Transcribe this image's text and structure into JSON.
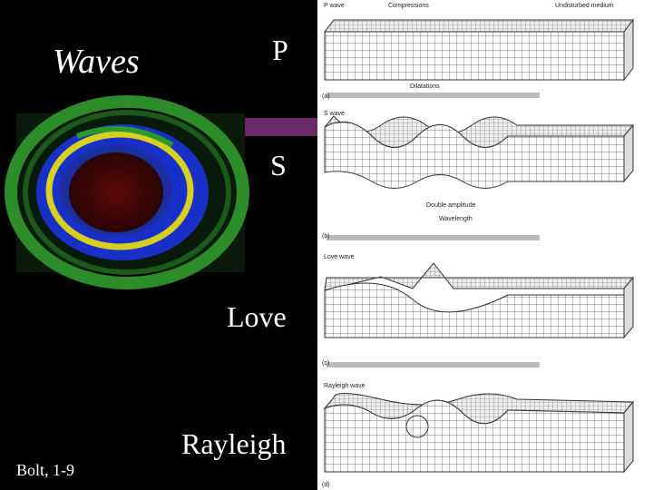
{
  "slide": {
    "title": "Waves",
    "labels": [
      "P",
      "S",
      "Love",
      "Rayleigh"
    ],
    "credit": "Bolt, 1-9"
  },
  "figure": {
    "p_wave": {
      "label": "P wave",
      "compressions": "Compressions",
      "undisturbed": "Undisturbed medium",
      "dilatations": "Dilatations",
      "panel": "(a)"
    },
    "s_wave": {
      "label": "S wave",
      "amplitude": "Double amplitude",
      "wavelength": "Wavelength",
      "panel": "(b)"
    },
    "love_wave": {
      "label": "Love wave",
      "panel": "(c)"
    },
    "rayleigh_wave": {
      "label": "Rayleigh wave",
      "panel": "(d)"
    }
  }
}
